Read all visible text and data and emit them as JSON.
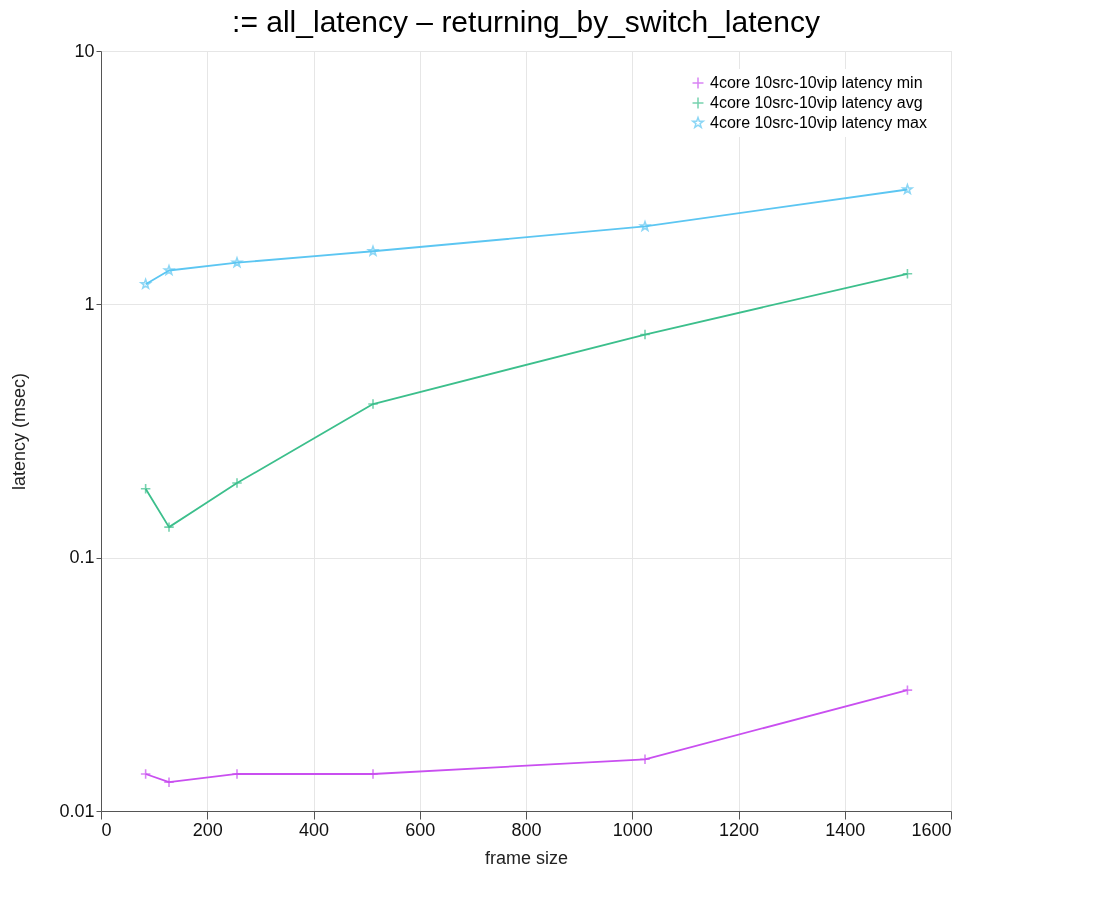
{
  "chart_data": {
    "type": "line",
    "title": ":= all_latency – returning_by_switch_latency",
    "xlabel": "frame size",
    "ylabel": "latency (msec)",
    "x": [
      84,
      128,
      256,
      512,
      1024,
      1518
    ],
    "series": [
      {
        "name": "4core 10src-10vip latency min",
        "color": "#c94ff0",
        "marker": "cross",
        "values": [
          0.014,
          0.013,
          0.014,
          0.014,
          0.016,
          0.03
        ]
      },
      {
        "name": "4core 10src-10vip latency avg",
        "color": "#3cbf8c",
        "marker": "cross",
        "values": [
          0.187,
          0.132,
          0.197,
          0.404,
          0.76,
          1.32
        ]
      },
      {
        "name": "4core 10src-10vip latency max",
        "color": "#5cc6f2",
        "marker": "star",
        "values": [
          1.2,
          1.36,
          1.46,
          1.62,
          2.03,
          2.84
        ]
      }
    ],
    "xlim": [
      0,
      1600
    ],
    "xticks": [
      0,
      200,
      400,
      600,
      800,
      1000,
      1200,
      1400,
      1600
    ],
    "ylim": [
      0.01,
      10
    ],
    "yticks": [
      0.01,
      0.1,
      1,
      10
    ],
    "log": "y",
    "grid": true,
    "legend": "top right",
    "line_style": "solid"
  }
}
